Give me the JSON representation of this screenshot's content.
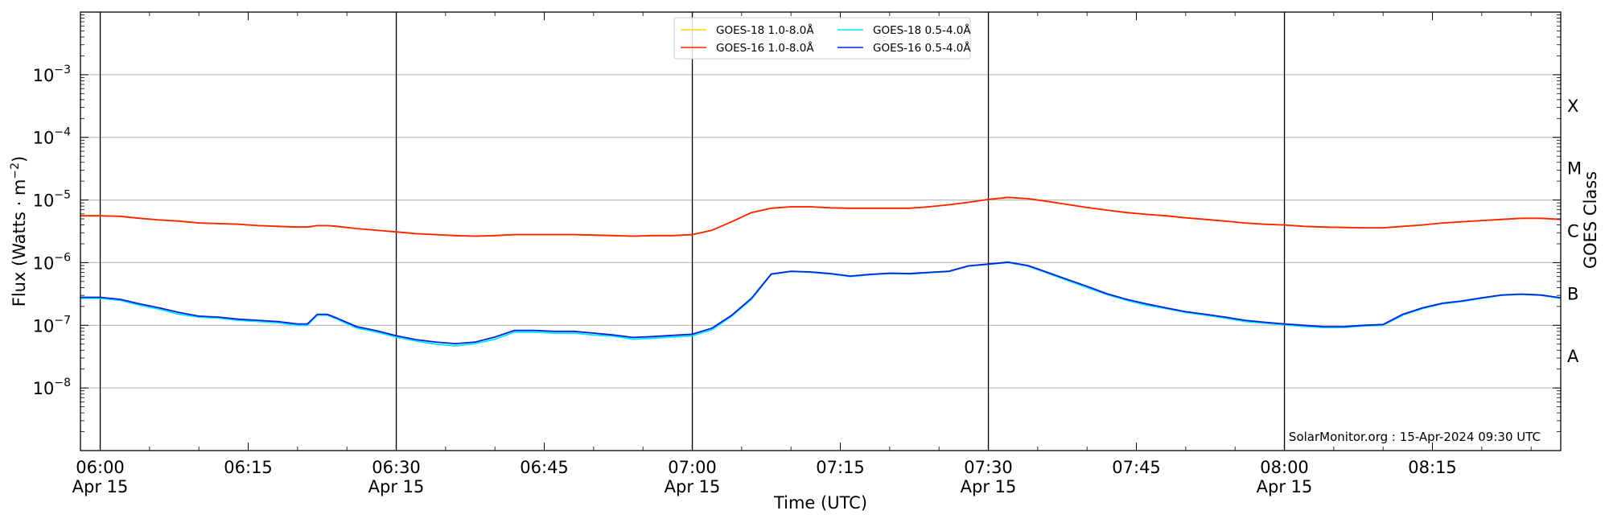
{
  "chart_data": {
    "type": "line",
    "xlabel": "Time (UTC)",
    "ylabel": "Flux (Watts · m",
    "ylabel_sup": "−2",
    "ylabel_close": ")",
    "right_label": "GOES Class",
    "y_scale": "log",
    "ylim": [
      1e-09,
      0.01
    ],
    "xlim": [
      "05:58",
      "08:28"
    ],
    "y_ticks": [
      {
        "value": 1e-08,
        "base": "10",
        "exp": "−8"
      },
      {
        "value": 1e-07,
        "base": "10",
        "exp": "−7"
      },
      {
        "value": 1e-06,
        "base": "10",
        "exp": "−6"
      },
      {
        "value": 1e-05,
        "base": "10",
        "exp": "−5"
      },
      {
        "value": 0.0001,
        "base": "10",
        "exp": "−4"
      },
      {
        "value": 0.001,
        "base": "10",
        "exp": "−3"
      }
    ],
    "x_ticks": [
      {
        "t": "06:00",
        "line1": "06:00",
        "line2": "Apr 15"
      },
      {
        "t": "06:15",
        "line1": "06:15",
        "line2": ""
      },
      {
        "t": "06:30",
        "line1": "06:30",
        "line2": "Apr 15"
      },
      {
        "t": "06:45",
        "line1": "06:45",
        "line2": ""
      },
      {
        "t": "07:00",
        "line1": "07:00",
        "line2": "Apr 15"
      },
      {
        "t": "07:15",
        "line1": "07:15",
        "line2": ""
      },
      {
        "t": "07:30",
        "line1": "07:30",
        "line2": "Apr 15"
      },
      {
        "t": "07:45",
        "line1": "07:45",
        "line2": ""
      },
      {
        "t": "08:00",
        "line1": "08:00",
        "line2": "Apr 15"
      },
      {
        "t": "08:15",
        "line1": "08:15",
        "line2": ""
      }
    ],
    "vertical_markers": [
      "06:00",
      "06:30",
      "07:00",
      "07:30",
      "08:00"
    ],
    "goes_classes": [
      {
        "label": "A",
        "value": 3.16e-08
      },
      {
        "label": "B",
        "value": 3.16e-07
      },
      {
        "label": "C",
        "value": 3.16e-06
      },
      {
        "label": "M",
        "value": 3.16e-05
      },
      {
        "label": "X",
        "value": 0.000316
      }
    ],
    "grid": "horizontal",
    "legend_position": "top-center",
    "credit": "SolarMonitor.org : 15-Apr-2024 09:30 UTC",
    "series": [
      {
        "name": "GOES-18 1.0-8.0Å",
        "color": "#ffd700",
        "x": [
          "05:58",
          "06:00",
          "06:02",
          "06:04",
          "06:06",
          "06:08",
          "06:10",
          "06:12",
          "06:14",
          "06:16",
          "06:18",
          "06:20",
          "06:21",
          "06:22",
          "06:23",
          "06:24",
          "06:26",
          "06:28",
          "06:30",
          "06:32",
          "06:34",
          "06:36",
          "06:38",
          "06:40",
          "06:42",
          "06:44",
          "06:46",
          "06:48",
          "06:50",
          "06:52",
          "06:54",
          "06:56",
          "06:58",
          "07:00",
          "07:02",
          "07:04",
          "07:06",
          "07:08",
          "07:10",
          "07:12",
          "07:14",
          "07:16",
          "07:18",
          "07:20",
          "07:22",
          "07:24",
          "07:26",
          "07:28",
          "07:30",
          "07:32",
          "07:34",
          "07:36",
          "07:38",
          "07:40",
          "07:42",
          "07:44",
          "07:46",
          "07:48",
          "07:50",
          "07:52",
          "07:54",
          "07:56",
          "07:58",
          "08:00",
          "08:02",
          "08:04",
          "08:06",
          "08:08",
          "08:10",
          "08:12",
          "08:14",
          "08:16",
          "08:18",
          "08:20",
          "08:22",
          "08:24",
          "08:26",
          "08:28"
        ],
        "y": [
          5.6e-06,
          5.6e-06,
          5.5e-06,
          5.1e-06,
          4.8e-06,
          4.6e-06,
          4.3e-06,
          4.2e-06,
          4.1e-06,
          3.9e-06,
          3.8e-06,
          3.7e-06,
          3.7e-06,
          3.9e-06,
          3.9e-06,
          3.8e-06,
          3.5e-06,
          3.3e-06,
          3.1e-06,
          2.9e-06,
          2.8e-06,
          2.7e-06,
          2.65e-06,
          2.7e-06,
          2.8e-06,
          2.8e-06,
          2.8e-06,
          2.8e-06,
          2.75e-06,
          2.7e-06,
          2.65e-06,
          2.7e-06,
          2.7e-06,
          2.8e-06,
          3.3e-06,
          4.5e-06,
          6.3e-06,
          7.4e-06,
          7.8e-06,
          7.8e-06,
          7.5e-06,
          7.4e-06,
          7.4e-06,
          7.4e-06,
          7.4e-06,
          7.8e-06,
          8.4e-06,
          9.2e-06,
          1.02e-05,
          1.1e-05,
          1.05e-05,
          9.5e-06,
          8.5e-06,
          7.6e-06,
          6.9e-06,
          6.3e-06,
          5.9e-06,
          5.6e-06,
          5.2e-06,
          4.9e-06,
          4.6e-06,
          4.3e-06,
          4.1e-06,
          4e-06,
          3.8e-06,
          3.7e-06,
          3.65e-06,
          3.6e-06,
          3.6e-06,
          3.8e-06,
          4e-06,
          4.3e-06,
          4.5e-06,
          4.7e-06,
          4.9e-06,
          5.1e-06,
          5.1e-06,
          4.9e-06
        ]
      },
      {
        "name": "GOES-16 1.0-8.0Å",
        "color": "#ff2200",
        "x": [
          "05:58",
          "06:00",
          "06:02",
          "06:04",
          "06:06",
          "06:08",
          "06:10",
          "06:12",
          "06:14",
          "06:16",
          "06:18",
          "06:20",
          "06:21",
          "06:22",
          "06:23",
          "06:24",
          "06:26",
          "06:28",
          "06:30",
          "06:32",
          "06:34",
          "06:36",
          "06:38",
          "06:40",
          "06:42",
          "06:44",
          "06:46",
          "06:48",
          "06:50",
          "06:52",
          "06:54",
          "06:56",
          "06:58",
          "07:00",
          "07:02",
          "07:04",
          "07:06",
          "07:08",
          "07:10",
          "07:12",
          "07:14",
          "07:16",
          "07:18",
          "07:20",
          "07:22",
          "07:24",
          "07:26",
          "07:28",
          "07:30",
          "07:32",
          "07:34",
          "07:36",
          "07:38",
          "07:40",
          "07:42",
          "07:44",
          "07:46",
          "07:48",
          "07:50",
          "07:52",
          "07:54",
          "07:56",
          "07:58",
          "08:00",
          "08:02",
          "08:04",
          "08:06",
          "08:08",
          "08:10",
          "08:12",
          "08:14",
          "08:16",
          "08:18",
          "08:20",
          "08:22",
          "08:24",
          "08:26",
          "08:28"
        ],
        "y": [
          5.6e-06,
          5.6e-06,
          5.5e-06,
          5.1e-06,
          4.8e-06,
          4.6e-06,
          4.3e-06,
          4.2e-06,
          4.1e-06,
          3.9e-06,
          3.8e-06,
          3.7e-06,
          3.7e-06,
          3.9e-06,
          3.9e-06,
          3.8e-06,
          3.5e-06,
          3.3e-06,
          3.1e-06,
          2.9e-06,
          2.8e-06,
          2.7e-06,
          2.65e-06,
          2.7e-06,
          2.8e-06,
          2.8e-06,
          2.8e-06,
          2.8e-06,
          2.75e-06,
          2.7e-06,
          2.65e-06,
          2.7e-06,
          2.7e-06,
          2.8e-06,
          3.3e-06,
          4.5e-06,
          6.3e-06,
          7.4e-06,
          7.8e-06,
          7.8e-06,
          7.5e-06,
          7.4e-06,
          7.4e-06,
          7.4e-06,
          7.4e-06,
          7.8e-06,
          8.4e-06,
          9.2e-06,
          1.02e-05,
          1.1e-05,
          1.05e-05,
          9.5e-06,
          8.5e-06,
          7.6e-06,
          6.9e-06,
          6.3e-06,
          5.9e-06,
          5.6e-06,
          5.2e-06,
          4.9e-06,
          4.6e-06,
          4.3e-06,
          4.1e-06,
          4e-06,
          3.8e-06,
          3.7e-06,
          3.65e-06,
          3.6e-06,
          3.6e-06,
          3.8e-06,
          4e-06,
          4.3e-06,
          4.5e-06,
          4.7e-06,
          4.9e-06,
          5.1e-06,
          5.1e-06,
          4.9e-06
        ]
      },
      {
        "name": "GOES-18 0.5-4.0Å",
        "color": "#00e5ff",
        "x": [
          "05:58",
          "06:00",
          "06:02",
          "06:04",
          "06:06",
          "06:08",
          "06:10",
          "06:12",
          "06:14",
          "06:16",
          "06:18",
          "06:20",
          "06:21",
          "06:22",
          "06:23",
          "06:24",
          "06:26",
          "06:28",
          "06:30",
          "06:32",
          "06:34",
          "06:36",
          "06:38",
          "06:40",
          "06:42",
          "06:44",
          "06:46",
          "06:48",
          "06:50",
          "06:52",
          "06:54",
          "06:56",
          "06:58",
          "07:00",
          "07:02",
          "07:04",
          "07:06",
          "07:08",
          "07:10",
          "07:12",
          "07:14",
          "07:16",
          "07:18",
          "07:20",
          "07:22",
          "07:24",
          "07:26",
          "07:28",
          "07:30",
          "07:32",
          "07:34",
          "07:36",
          "07:38",
          "07:40",
          "07:42",
          "07:44",
          "07:46",
          "07:48",
          "07:50",
          "07:52",
          "07:54",
          "07:56",
          "07:58",
          "08:00",
          "08:02",
          "08:04",
          "08:06",
          "08:08",
          "08:10",
          "08:12",
          "08:14",
          "08:16",
          "08:18",
          "08:20",
          "08:22",
          "08:24",
          "08:26",
          "08:28"
        ],
        "y": [
          2.7e-07,
          2.7e-07,
          2.5e-07,
          2.1e-07,
          1.8e-07,
          1.5e-07,
          1.35e-07,
          1.3e-07,
          1.2e-07,
          1.15e-07,
          1.1e-07,
          1e-07,
          1e-07,
          1.45e-07,
          1.45e-07,
          1.25e-07,
          9e-08,
          7.8e-08,
          6.5e-08,
          5.6e-08,
          5e-08,
          4.7e-08,
          5.1e-08,
          6e-08,
          7.8e-08,
          7.8e-08,
          7.5e-08,
          7.5e-08,
          7e-08,
          6.7e-08,
          6e-08,
          6.2e-08,
          6.5e-08,
          6.8e-08,
          8.5e-08,
          1.4e-07,
          2.6e-07,
          6.5e-07,
          7.2e-07,
          7e-07,
          6.6e-07,
          6e-07,
          6.4e-07,
          6.7e-07,
          6.6e-07,
          6.9e-07,
          7.2e-07,
          8.8e-07,
          9.4e-07,
          1e-06,
          8.8e-07,
          6.8e-07,
          5.2e-07,
          4e-07,
          3.1e-07,
          2.5e-07,
          2.1e-07,
          1.85e-07,
          1.6e-07,
          1.45e-07,
          1.3e-07,
          1.15e-07,
          1.08e-07,
          1.02e-07,
          9.6e-08,
          9.2e-08,
          9.2e-08,
          9.8e-08,
          1e-07,
          1.45e-07,
          1.85e-07,
          2.2e-07,
          2.4e-07,
          2.7e-07,
          3e-07,
          3.1e-07,
          3e-07,
          2.7e-07
        ]
      },
      {
        "name": "GOES-16 0.5-4.0Å",
        "color": "#0022dd",
        "x": [
          "05:58",
          "06:00",
          "06:02",
          "06:04",
          "06:06",
          "06:08",
          "06:10",
          "06:12",
          "06:14",
          "06:16",
          "06:18",
          "06:20",
          "06:21",
          "06:22",
          "06:23",
          "06:24",
          "06:26",
          "06:28",
          "06:30",
          "06:32",
          "06:34",
          "06:36",
          "06:38",
          "06:40",
          "06:42",
          "06:44",
          "06:46",
          "06:48",
          "06:50",
          "06:52",
          "06:54",
          "06:56",
          "06:58",
          "07:00",
          "07:02",
          "07:04",
          "07:06",
          "07:08",
          "07:10",
          "07:12",
          "07:14",
          "07:16",
          "07:18",
          "07:20",
          "07:22",
          "07:24",
          "07:26",
          "07:28",
          "07:30",
          "07:32",
          "07:34",
          "07:36",
          "07:38",
          "07:40",
          "07:42",
          "07:44",
          "07:46",
          "07:48",
          "07:50",
          "07:52",
          "07:54",
          "07:56",
          "07:58",
          "08:00",
          "08:02",
          "08:04",
          "08:06",
          "08:08",
          "08:10",
          "08:12",
          "08:14",
          "08:16",
          "08:18",
          "08:20",
          "08:22",
          "08:24",
          "08:26",
          "08:28"
        ],
        "y": [
          2.8e-07,
          2.8e-07,
          2.6e-07,
          2.2e-07,
          1.9e-07,
          1.6e-07,
          1.4e-07,
          1.35e-07,
          1.25e-07,
          1.2e-07,
          1.15e-07,
          1.05e-07,
          1.05e-07,
          1.5e-07,
          1.5e-07,
          1.3e-07,
          9.5e-08,
          8.2e-08,
          6.8e-08,
          5.9e-08,
          5.4e-08,
          5.1e-08,
          5.4e-08,
          6.5e-08,
          8.3e-08,
          8.3e-08,
          8e-08,
          8e-08,
          7.5e-08,
          7e-08,
          6.4e-08,
          6.6e-08,
          6.9e-08,
          7.2e-08,
          9e-08,
          1.45e-07,
          2.7e-07,
          6.6e-07,
          7.3e-07,
          7.1e-07,
          6.7e-07,
          6.1e-07,
          6.5e-07,
          6.8e-07,
          6.7e-07,
          7e-07,
          7.3e-07,
          8.9e-07,
          9.5e-07,
          1.02e-06,
          9e-07,
          7e-07,
          5.4e-07,
          4.2e-07,
          3.2e-07,
          2.6e-07,
          2.2e-07,
          1.9e-07,
          1.65e-07,
          1.5e-07,
          1.35e-07,
          1.2e-07,
          1.12e-07,
          1.05e-07,
          1e-07,
          9.5e-08,
          9.5e-08,
          1e-07,
          1.03e-07,
          1.5e-07,
          1.9e-07,
          2.25e-07,
          2.45e-07,
          2.75e-07,
          3.05e-07,
          3.15e-07,
          3.05e-07,
          2.75e-07
        ]
      }
    ]
  }
}
